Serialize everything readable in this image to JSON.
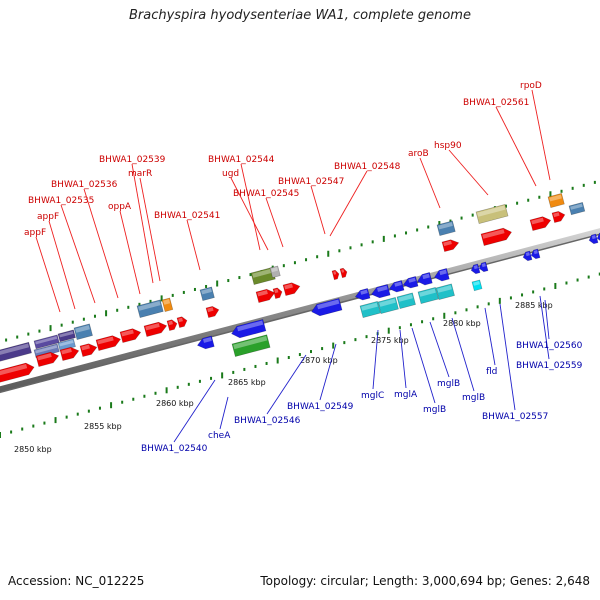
{
  "title": "Brachyspira hyodysenteriae WA1, complete genome",
  "footer": {
    "accession": "Accession: NC_012225",
    "summary": "Topology: circular; Length: 3,000,694 bp; Genes: 2,648"
  },
  "colors": {
    "forward_label": "#cc0000",
    "reverse_label": "#0000aa",
    "cds_forward": "#ee0000",
    "cds_reverse": "#1a1ae6",
    "tick": "#1a7a1a"
  },
  "scale_labels": [
    "2850 kbp",
    "2855 kbp",
    "2860 kbp",
    "2865 kbp",
    "2870 kbp",
    "2875 kbp",
    "2880 kbp",
    "2885 kbp"
  ],
  "forward_labels": [
    "appF",
    "appF",
    "BHWA1_02535",
    "BHWA1_02536",
    "BHWA1_02539",
    "marR",
    "oppA",
    "BHWA1_02541",
    "BHWA1_02544",
    "ugd",
    "BHWA1_02545",
    "BHWA1_02547",
    "BHWA1_02548",
    "aroB",
    "hsp90",
    "BHWA1_02561",
    "rpoD"
  ],
  "reverse_labels": [
    "BHWA1_02540",
    "cheA",
    "BHWA1_02546",
    "BHWA1_02549",
    "mglC",
    "mglA",
    "mglB",
    "mglB",
    "mglB",
    "fld",
    "BHWA1_02557",
    "BHWA1_02559",
    "BHWA1_02560"
  ]
}
